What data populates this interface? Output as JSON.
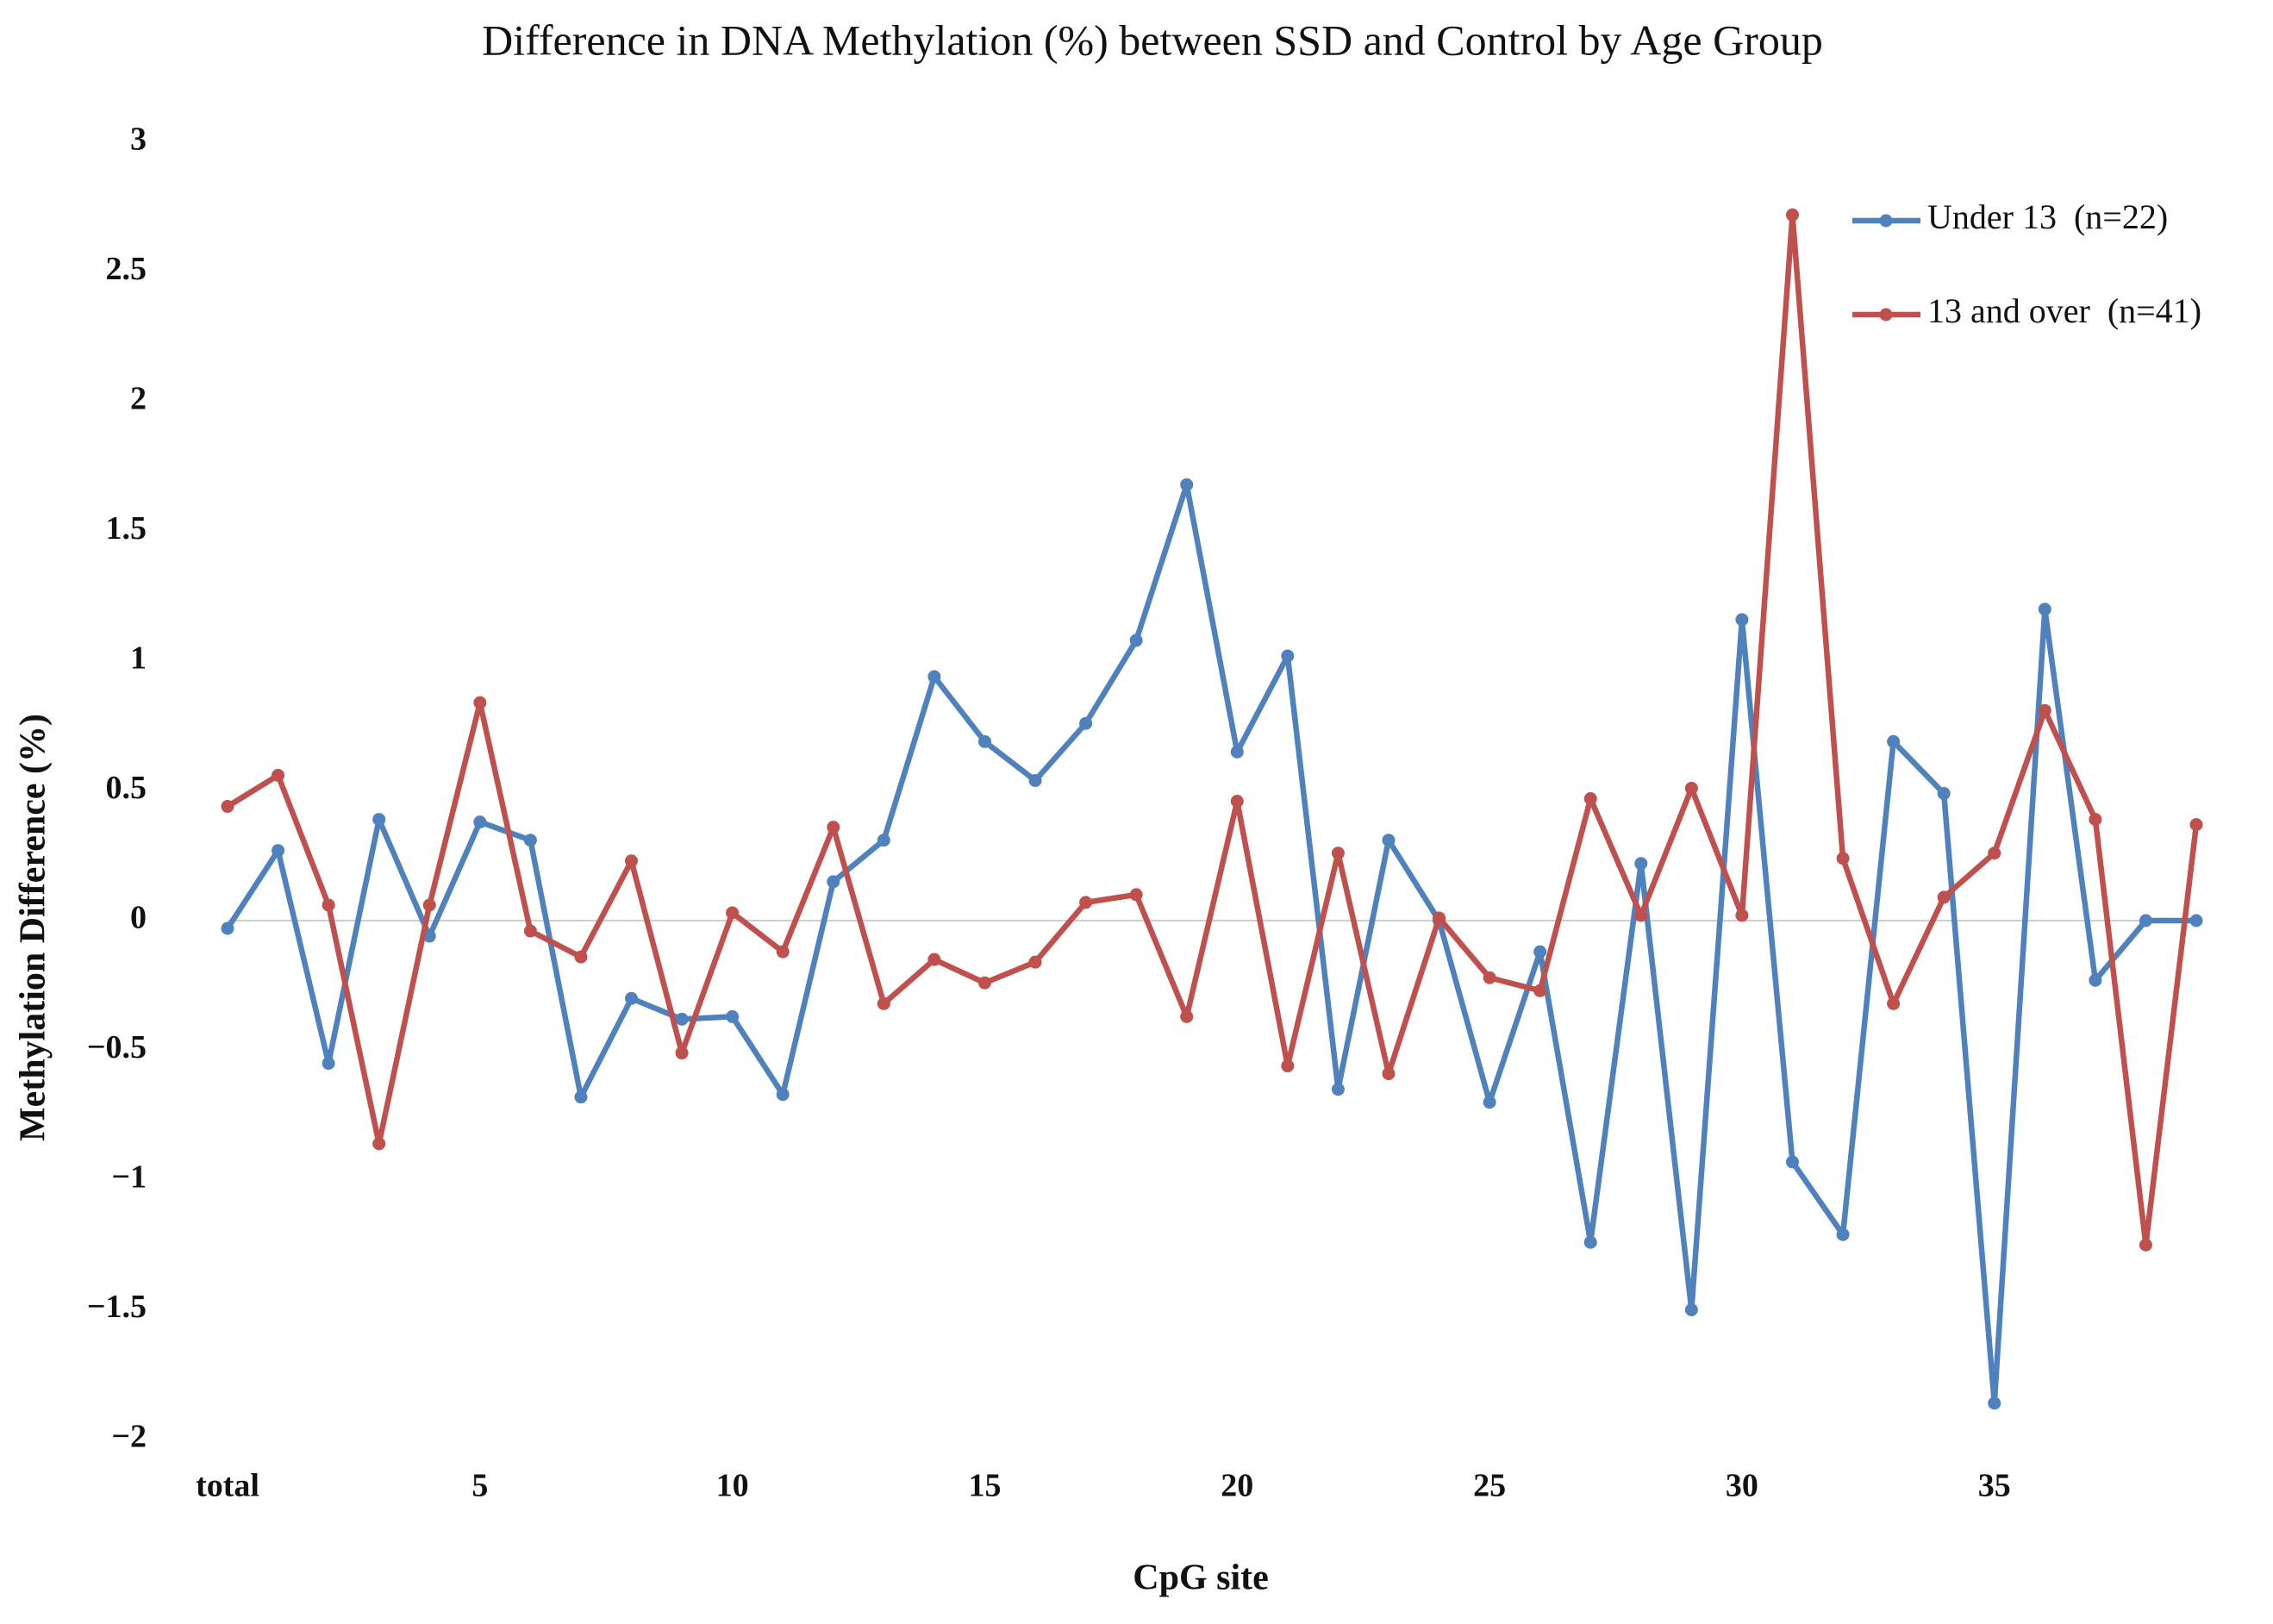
{
  "chart_data": {
    "type": "line",
    "title": "Difference in  DNA Methylation (%) between SSD and Control by Age Group",
    "x_label": "CpG site",
    "y_label": "Methylation Difference  (%)",
    "categories": [
      "total",
      null,
      null,
      null,
      null,
      "5",
      null,
      null,
      null,
      null,
      "10",
      null,
      null,
      null,
      null,
      "15",
      null,
      null,
      null,
      null,
      "20",
      null,
      null,
      null,
      null,
      "25",
      null,
      null,
      null,
      null,
      "30",
      null,
      null,
      null,
      null,
      "35",
      null,
      null,
      null,
      null
    ],
    "series": [
      {
        "name": "Under 13  (n=22)",
        "color": "#4f81bd",
        "values": [
          -0.03,
          0.27,
          -0.55,
          0.39,
          -0.06,
          0.38,
          0.31,
          -0.68,
          -0.3,
          -0.38,
          -0.37,
          -0.67,
          0.15,
          0.31,
          0.94,
          0.69,
          0.54,
          0.76,
          1.08,
          1.68,
          0.65,
          1.02,
          -0.65,
          0.31,
          0,
          -0.7,
          -0.12,
          -1.24,
          0.22,
          -1.5,
          1.16,
          -0.93,
          -1.21,
          0.69,
          0.49,
          -1.86,
          1.2,
          -0.23,
          0,
          0
        ]
      },
      {
        "name": "13 and over  (n=41)",
        "color": "#c0504d",
        "values": [
          0.44,
          0.56,
          0.06,
          -0.86,
          0.06,
          0.84,
          -0.04,
          -0.14,
          0.23,
          -0.51,
          0.03,
          -0.12,
          0.36,
          -0.32,
          -0.15,
          -0.24,
          -0.16,
          0.07,
          0.1,
          -0.37,
          0.46,
          -0.56,
          0.26,
          -0.59,
          0.01,
          -0.22,
          -0.27,
          0.47,
          0.02,
          0.51,
          0.02,
          2.72,
          0.24,
          -0.32,
          0.09,
          0.26,
          0.81,
          0.39,
          -1.25,
          0.37
        ]
      }
    ],
    "ylim": [
      -2,
      3
    ],
    "yticks": [
      {
        "value": -2,
        "label": "−2"
      },
      {
        "value": -1.5,
        "label": "−1.5"
      },
      {
        "value": -1,
        "label": "−1"
      },
      {
        "value": -0.5,
        "label": "−0.5"
      },
      0,
      0.5,
      1,
      1.5,
      2,
      2.5,
      3
    ],
    "grid": false,
    "legend": "top-right"
  }
}
